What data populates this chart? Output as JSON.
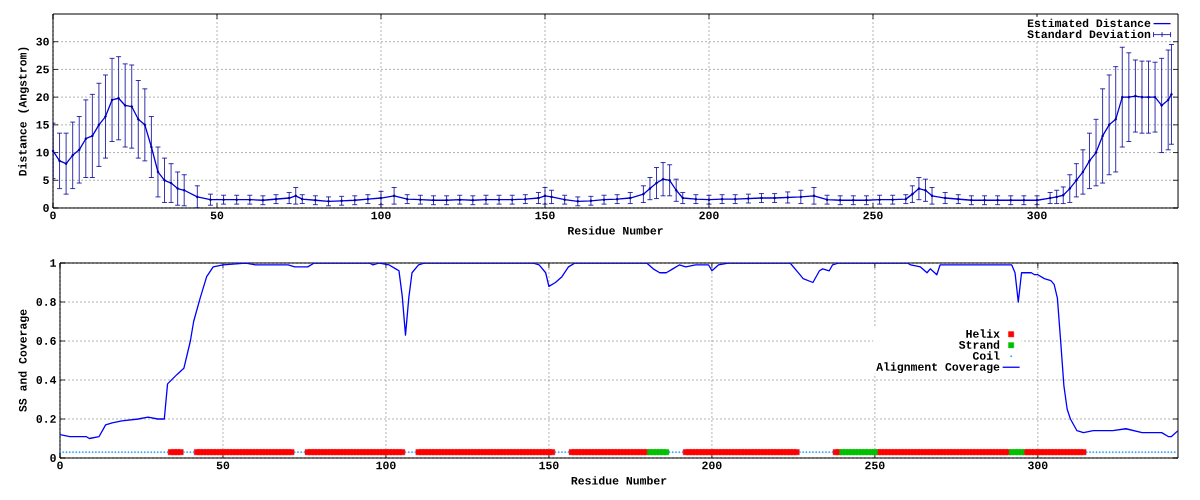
{
  "chart_data": [
    {
      "type": "line",
      "xlabel": "Residue Number",
      "ylabel": "Distance (Angstrom)",
      "xlim": [
        0,
        343
      ],
      "ylim": [
        0,
        35
      ],
      "xticks": [
        0,
        50,
        100,
        150,
        200,
        250,
        300
      ],
      "yticks": [
        0,
        5,
        10,
        15,
        20,
        25,
        30
      ],
      "grid": true,
      "legend": "top right",
      "series": [
        {
          "name": "Estimated Distance",
          "color": "#0000dd",
          "x": [
            0,
            2,
            4,
            6,
            8,
            10,
            12,
            14,
            16,
            18,
            20,
            22,
            24,
            26,
            28,
            30,
            32,
            34,
            36,
            38,
            40,
            44,
            48,
            52,
            56,
            60,
            64,
            68,
            72,
            74,
            76,
            80,
            84,
            88,
            92,
            96,
            100,
            104,
            108,
            112,
            116,
            120,
            124,
            128,
            132,
            136,
            140,
            144,
            148,
            150,
            152,
            156,
            160,
            164,
            168,
            172,
            176,
            180,
            182,
            184,
            186,
            188,
            190,
            192,
            196,
            200,
            204,
            208,
            212,
            216,
            220,
            224,
            228,
            232,
            236,
            240,
            244,
            248,
            252,
            256,
            260,
            262,
            264,
            266,
            268,
            272,
            276,
            280,
            284,
            288,
            292,
            296,
            300,
            304,
            306,
            308,
            310,
            312,
            314,
            316,
            318,
            320,
            322,
            324,
            326,
            328,
            330,
            332,
            334,
            336,
            338,
            340,
            341
          ],
          "values": [
            10.3,
            8.5,
            8,
            9.5,
            10.5,
            12.5,
            13,
            15,
            16.5,
            19.5,
            19.8,
            18.5,
            18.3,
            16,
            15,
            11,
            6.5,
            5,
            4.5,
            3.5,
            3.2,
            2,
            1.5,
            1.5,
            1.5,
            1.5,
            1.4,
            1.6,
            1.8,
            2.2,
            1.6,
            1.4,
            1.2,
            1.3,
            1.4,
            1.6,
            1.8,
            2.2,
            1.6,
            1.5,
            1.4,
            1.4,
            1.5,
            1.4,
            1.5,
            1.5,
            1.5,
            1.6,
            1.8,
            2.2,
            2,
            1.5,
            1.2,
            1.3,
            1.5,
            1.6,
            1.8,
            2.5,
            3.5,
            4.5,
            5.2,
            5,
            3.2,
            1.8,
            1.6,
            1.5,
            1.6,
            1.6,
            1.7,
            1.8,
            1.8,
            1.9,
            2,
            2.2,
            1.5,
            1.4,
            1.4,
            1.4,
            1.5,
            1.5,
            1.6,
            2.5,
            3.5,
            3.2,
            2.2,
            1.8,
            1.6,
            1.4,
            1.4,
            1.4,
            1.4,
            1.4,
            1.4,
            1.8,
            2,
            2.3,
            3.5,
            5,
            6.5,
            8.5,
            10,
            13,
            15,
            16,
            20,
            20,
            20.2,
            20,
            20,
            20,
            18.5,
            19.5,
            20.5
          ]
        },
        {
          "name": "Standard Deviation",
          "type": "scatter",
          "marker": "none",
          "color": "#000099",
          "x": [
            0,
            2,
            4,
            6,
            8,
            10,
            12,
            14,
            16,
            18,
            20,
            22,
            24,
            26,
            28,
            30,
            32,
            34,
            36,
            38,
            40,
            44,
            48,
            52,
            56,
            60,
            64,
            68,
            72,
            74,
            76,
            80,
            84,
            88,
            92,
            96,
            100,
            104,
            108,
            112,
            116,
            120,
            124,
            128,
            132,
            136,
            140,
            144,
            148,
            150,
            152,
            156,
            160,
            164,
            168,
            172,
            176,
            180,
            182,
            184,
            186,
            188,
            190,
            192,
            196,
            200,
            204,
            208,
            212,
            216,
            220,
            224,
            228,
            232,
            236,
            240,
            244,
            248,
            252,
            256,
            260,
            262,
            264,
            266,
            268,
            272,
            276,
            280,
            284,
            288,
            292,
            296,
            300,
            304,
            306,
            308,
            310,
            312,
            314,
            316,
            318,
            320,
            322,
            324,
            326,
            328,
            330,
            332,
            334,
            336,
            338,
            340,
            341
          ],
          "values": [
            10.3,
            8.5,
            8,
            9.5,
            10.5,
            12.5,
            13,
            15,
            16.5,
            19.5,
            19.8,
            18.5,
            18.3,
            16,
            15,
            11,
            6.5,
            5,
            4.5,
            3.5,
            3.2,
            2,
            1.5,
            1.5,
            1.5,
            1.5,
            1.4,
            1.6,
            1.8,
            2.2,
            1.6,
            1.4,
            1.2,
            1.3,
            1.4,
            1.6,
            1.8,
            2.2,
            1.6,
            1.5,
            1.4,
            1.4,
            1.5,
            1.4,
            1.5,
            1.5,
            1.5,
            1.6,
            1.8,
            2.2,
            2,
            1.5,
            1.2,
            1.3,
            1.5,
            1.6,
            1.8,
            2.5,
            3.5,
            4.5,
            5.2,
            5,
            3.2,
            1.8,
            1.6,
            1.5,
            1.6,
            1.6,
            1.7,
            1.8,
            1.8,
            1.9,
            2,
            2.2,
            1.5,
            1.4,
            1.4,
            1.4,
            1.5,
            1.5,
            1.6,
            2.5,
            3.5,
            3.2,
            2.2,
            1.8,
            1.6,
            1.4,
            1.4,
            1.4,
            1.4,
            1.4,
            1.4,
            1.8,
            2,
            2.3,
            3.5,
            5,
            6.5,
            8.5,
            10,
            13,
            15,
            16,
            20,
            20,
            20.2,
            20,
            20,
            20,
            18.5,
            19.5,
            20.5
          ],
          "errors": [
            5,
            5,
            5.5,
            6,
            6,
            7,
            7.5,
            7.5,
            7.5,
            7.5,
            7.5,
            7.5,
            7.5,
            7,
            6.5,
            5.5,
            4.5,
            4,
            3.5,
            3,
            2.8,
            2,
            1,
            0.8,
            0.8,
            0.8,
            0.8,
            0.8,
            1,
            1.5,
            0.8,
            0.8,
            0.8,
            0.8,
            0.8,
            0.8,
            1.2,
            1.5,
            0.8,
            0.8,
            0.8,
            0.8,
            0.8,
            0.8,
            0.8,
            0.8,
            0.8,
            0.8,
            1,
            1.5,
            1.2,
            0.8,
            0.8,
            0.8,
            0.8,
            0.8,
            1,
            1.5,
            2,
            2.8,
            3,
            2.8,
            2,
            1,
            0.8,
            0.8,
            0.8,
            0.8,
            0.8,
            0.8,
            0.8,
            1,
            1.2,
            1.5,
            0.8,
            0.8,
            0.8,
            0.8,
            0.8,
            0.8,
            0.8,
            1.5,
            2,
            2,
            1.5,
            1,
            0.8,
            0.8,
            0.8,
            0.8,
            0.8,
            0.8,
            0.8,
            1,
            1.2,
            1.5,
            2.5,
            3,
            4,
            5,
            6,
            8.5,
            9,
            9.5,
            9,
            8,
            6.5,
            6.5,
            6.5,
            6.3,
            8.5,
            9,
            9
          ]
        }
      ]
    },
    {
      "type": "line",
      "xlabel": "Residue Number",
      "ylabel": "SS and Coverage",
      "xlim": [
        0,
        343
      ],
      "ylim": [
        0,
        1
      ],
      "xticks": [
        0,
        50,
        100,
        150,
        200,
        250,
        300
      ],
      "yticks": [
        0,
        0.2,
        0.4,
        0.6,
        0.8,
        1
      ],
      "grid": true,
      "legend": "right",
      "series": [
        {
          "name": "Helix",
          "type": "scatter",
          "marker": "square",
          "color": "#ff0000",
          "x": [
            34,
            35,
            36,
            37,
            42,
            43,
            44,
            45,
            46,
            47,
            48,
            49,
            50,
            51,
            52,
            53,
            54,
            55,
            56,
            57,
            58,
            59,
            60,
            61,
            62,
            63,
            64,
            65,
            66,
            67,
            68,
            69,
            70,
            71,
            76,
            77,
            78,
            79,
            80,
            81,
            82,
            83,
            84,
            85,
            86,
            87,
            88,
            89,
            90,
            91,
            92,
            93,
            94,
            95,
            96,
            97,
            98,
            99,
            100,
            101,
            102,
            103,
            104,
            105,
            110,
            111,
            112,
            113,
            114,
            115,
            116,
            117,
            118,
            119,
            120,
            121,
            122,
            123,
            124,
            125,
            126,
            127,
            128,
            129,
            130,
            131,
            132,
            133,
            134,
            135,
            136,
            137,
            138,
            139,
            140,
            141,
            142,
            143,
            144,
            145,
            146,
            147,
            148,
            149,
            150,
            151,
            157,
            158,
            159,
            160,
            161,
            162,
            163,
            164,
            165,
            166,
            167,
            168,
            169,
            170,
            171,
            172,
            173,
            174,
            175,
            176,
            177,
            178,
            179,
            180,
            192,
            193,
            194,
            195,
            196,
            197,
            198,
            199,
            200,
            201,
            202,
            203,
            204,
            205,
            206,
            207,
            208,
            209,
            210,
            211,
            212,
            213,
            214,
            215,
            216,
            217,
            218,
            219,
            220,
            221,
            222,
            223,
            224,
            225,
            226,
            238,
            239,
            251,
            252,
            253,
            254,
            255,
            256,
            257,
            258,
            259,
            260,
            261,
            262,
            263,
            264,
            265,
            266,
            267,
            268,
            269,
            270,
            271,
            272,
            273,
            274,
            275,
            276,
            277,
            278,
            279,
            280,
            281,
            282,
            283,
            284,
            285,
            286,
            287,
            288,
            289,
            290,
            291,
            296,
            297,
            298,
            299,
            300,
            301,
            302,
            303,
            304,
            305,
            306,
            307,
            308,
            309,
            310,
            311,
            312,
            313,
            314
          ],
          "values": [
            0.03,
            0.03,
            0.03,
            0.03,
            0.03,
            0.03,
            0.03,
            0.03,
            0.03,
            0.03,
            0.03,
            0.03,
            0.03,
            0.03,
            0.03,
            0.03,
            0.03,
            0.03,
            0.03,
            0.03,
            0.03,
            0.03,
            0.03,
            0.03,
            0.03,
            0.03,
            0.03,
            0.03,
            0.03,
            0.03,
            0.03,
            0.03,
            0.03,
            0.03,
            0.03,
            0.03,
            0.03,
            0.03,
            0.03,
            0.03,
            0.03,
            0.03,
            0.03,
            0.03,
            0.03,
            0.03,
            0.03,
            0.03,
            0.03,
            0.03,
            0.03,
            0.03,
            0.03,
            0.03,
            0.03,
            0.03,
            0.03,
            0.03,
            0.03,
            0.03,
            0.03,
            0.03,
            0.03,
            0.03,
            0.03,
            0.03,
            0.03,
            0.03,
            0.03,
            0.03,
            0.03,
            0.03,
            0.03,
            0.03,
            0.03,
            0.03,
            0.03,
            0.03,
            0.03,
            0.03,
            0.03,
            0.03,
            0.03,
            0.03,
            0.03,
            0.03,
            0.03,
            0.03,
            0.03,
            0.03,
            0.03,
            0.03,
            0.03,
            0.03,
            0.03,
            0.03,
            0.03,
            0.03,
            0.03,
            0.03,
            0.03,
            0.03,
            0.03,
            0.03,
            0.03,
            0.03,
            0.03,
            0.03,
            0.03,
            0.03,
            0.03,
            0.03,
            0.03,
            0.03,
            0.03,
            0.03,
            0.03,
            0.03,
            0.03,
            0.03,
            0.03,
            0.03,
            0.03,
            0.03,
            0.03,
            0.03,
            0.03,
            0.03,
            0.03,
            0.03,
            0.03,
            0.03,
            0.03,
            0.03,
            0.03,
            0.03,
            0.03,
            0.03,
            0.03,
            0.03,
            0.03,
            0.03,
            0.03,
            0.03,
            0.03,
            0.03,
            0.03,
            0.03,
            0.03,
            0.03,
            0.03,
            0.03,
            0.03,
            0.03,
            0.03,
            0.03,
            0.03,
            0.03,
            0.03,
            0.03,
            0.03,
            0.03,
            0.03,
            0.03,
            0.03,
            0.03,
            0.03,
            0.03,
            0.03,
            0.03,
            0.03,
            0.03,
            0.03,
            0.03,
            0.03,
            0.03,
            0.03,
            0.03,
            0.03,
            0.03,
            0.03,
            0.03,
            0.03,
            0.03,
            0.03,
            0.03,
            0.03,
            0.03,
            0.03,
            0.03,
            0.03,
            0.03,
            0.03,
            0.03,
            0.03,
            0.03,
            0.03,
            0.03,
            0.03,
            0.03,
            0.03,
            0.03,
            0.03,
            0.03,
            0.03,
            0.03,
            0.03,
            0.03,
            0.03,
            0.03,
            0.03,
            0.03,
            0.03,
            0.03,
            0.03,
            0.03,
            0.03,
            0.03,
            0.03,
            0.03,
            0.03,
            0.03,
            0.03,
            0.03,
            0.03,
            0.03,
            0.03
          ]
        },
        {
          "name": "Strand",
          "type": "scatter",
          "marker": "square",
          "color": "#00c000",
          "x": [
            181,
            182,
            183,
            184,
            185,
            186,
            240,
            241,
            242,
            243,
            244,
            245,
            246,
            247,
            248,
            249,
            250,
            292,
            293,
            294,
            295
          ],
          "values": [
            0.03,
            0.03,
            0.03,
            0.03,
            0.03,
            0.03,
            0.03,
            0.03,
            0.03,
            0.03,
            0.03,
            0.03,
            0.03,
            0.03,
            0.03,
            0.03,
            0.03,
            0.03,
            0.03,
            0.03,
            0.03
          ]
        },
        {
          "name": "Coil",
          "type": "scatter",
          "marker": "circle",
          "color": "#1e90ff",
          "x": [
            0,
            1,
            2,
            3,
            4,
            5,
            6,
            7,
            8,
            9,
            10,
            11,
            12,
            13,
            14,
            15,
            16,
            17,
            18,
            19,
            20,
            21,
            22,
            23,
            24,
            25,
            26,
            27,
            28,
            29,
            30,
            31,
            32,
            33,
            38,
            39,
            40,
            41,
            72,
            73,
            74,
            75,
            106,
            107,
            108,
            109,
            152,
            153,
            154,
            155,
            156,
            187,
            188,
            189,
            190,
            191,
            227,
            228,
            229,
            230,
            231,
            232,
            233,
            234,
            235,
            236,
            237,
            315,
            316,
            317,
            318,
            319,
            320,
            321,
            322,
            323,
            324,
            325,
            326,
            327,
            328,
            329,
            330,
            331,
            332,
            333,
            334,
            335,
            336,
            337,
            338,
            339,
            340,
            341,
            342
          ],
          "values": [
            0.03,
            0.03,
            0.03,
            0.03,
            0.03,
            0.03,
            0.03,
            0.03,
            0.03,
            0.03,
            0.03,
            0.03,
            0.03,
            0.03,
            0.03,
            0.03,
            0.03,
            0.03,
            0.03,
            0.03,
            0.03,
            0.03,
            0.03,
            0.03,
            0.03,
            0.03,
            0.03,
            0.03,
            0.03,
            0.03,
            0.03,
            0.03,
            0.03,
            0.03,
            0.03,
            0.03,
            0.03,
            0.03,
            0.03,
            0.03,
            0.03,
            0.03,
            0.03,
            0.03,
            0.03,
            0.03,
            0.03,
            0.03,
            0.03,
            0.03,
            0.03,
            0.03,
            0.03,
            0.03,
            0.03,
            0.03,
            0.03,
            0.03,
            0.03,
            0.03,
            0.03,
            0.03,
            0.03,
            0.03,
            0.03,
            0.03,
            0.03,
            0.03,
            0.03,
            0.03,
            0.03,
            0.03,
            0.03,
            0.03,
            0.03,
            0.03,
            0.03,
            0.03,
            0.03,
            0.03,
            0.03,
            0.03,
            0.03,
            0.03,
            0.03,
            0.03,
            0.03,
            0.03,
            0.03,
            0.03,
            0.03,
            0.03,
            0.03,
            0.03,
            0.03
          ]
        },
        {
          "name": "Alignment Coverage",
          "color": "#0000ff",
          "x": [
            0,
            3,
            8,
            9,
            12,
            14,
            16,
            19,
            24,
            27,
            30,
            32,
            33,
            36,
            38,
            40,
            41,
            43,
            45,
            47,
            50,
            57,
            60,
            70,
            72,
            76,
            78,
            95,
            96,
            98,
            101,
            103,
            104,
            105,
            106,
            107,
            108,
            110,
            112,
            145,
            147,
            149,
            150,
            152,
            154,
            156,
            158,
            180,
            182,
            184,
            186,
            188,
            190,
            192,
            195,
            199,
            200,
            202,
            205,
            224,
            227,
            228,
            231,
            233,
            234,
            236,
            237,
            239,
            260,
            261,
            264,
            266,
            267,
            269,
            270,
            292,
            293,
            294,
            295,
            298,
            299,
            300,
            302,
            304,
            305,
            306,
            307,
            308,
            309,
            310,
            312,
            314,
            317,
            323,
            327,
            332,
            338,
            340,
            341,
            343
          ],
          "values": [
            0.12,
            0.11,
            0.11,
            0.1,
            0.11,
            0.17,
            0.18,
            0.19,
            0.2,
            0.21,
            0.2,
            0.2,
            0.38,
            0.43,
            0.46,
            0.6,
            0.7,
            0.82,
            0.93,
            0.98,
            0.99,
            1,
            0.99,
            0.99,
            0.98,
            0.98,
            1,
            1,
            0.99,
            1,
            0.99,
            0.97,
            0.96,
            0.83,
            0.63,
            0.82,
            0.95,
            0.99,
            1,
            1,
            0.99,
            0.95,
            0.88,
            0.9,
            0.93,
            0.98,
            1,
            1,
            0.97,
            0.95,
            0.95,
            0.97,
            0.99,
            0.98,
            0.99,
            0.99,
            0.96,
            0.99,
            1,
            1,
            0.94,
            0.92,
            0.9,
            0.96,
            0.97,
            0.96,
            0.99,
            1,
            1,
            0.99,
            0.98,
            0.95,
            0.97,
            0.94,
            0.99,
            0.99,
            0.95,
            0.8,
            0.95,
            0.95,
            0.94,
            0.94,
            0.92,
            0.91,
            0.89,
            0.82,
            0.6,
            0.37,
            0.25,
            0.2,
            0.14,
            0.13,
            0.14,
            0.14,
            0.15,
            0.13,
            0.13,
            0.11,
            0.11,
            0.14
          ]
        }
      ]
    }
  ]
}
